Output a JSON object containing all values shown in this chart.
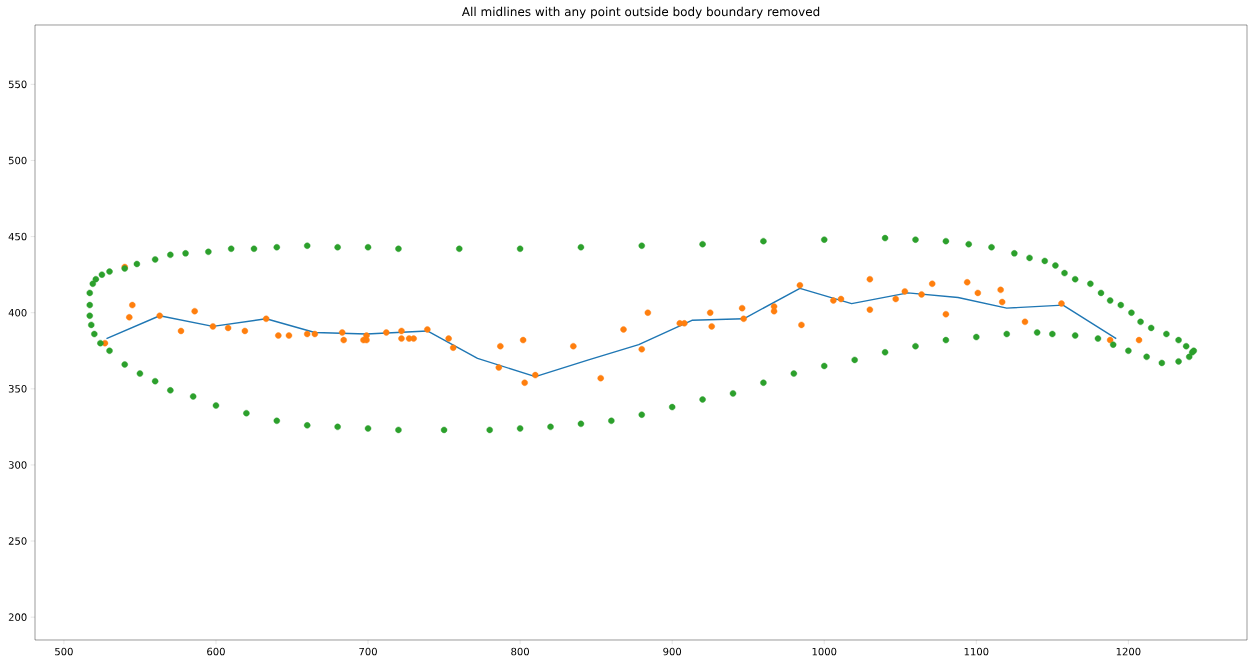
{
  "chart_data": {
    "type": "scatter",
    "title": "All midlines with any point outside body boundary removed",
    "xlim": [
      481,
      1278
    ],
    "ylim": [
      185,
      589
    ],
    "xticks": [
      500,
      600,
      700,
      800,
      900,
      1000,
      1100,
      1200
    ],
    "yticks": [
      200,
      250,
      300,
      350,
      400,
      450,
      500,
      550
    ],
    "marker": "circle",
    "line_style": "solid",
    "series": [
      {
        "type": "line",
        "marker": "none",
        "color": "#1f77b4",
        "x": [
          528,
          563,
          598,
          633,
          665,
          699,
          739,
          772,
          810,
          845,
          878,
          913,
          947,
          984,
          1018,
          1055,
          1088,
          1120,
          1157,
          1192
        ],
        "values": [
          383,
          398,
          391,
          396,
          387,
          386,
          388,
          370,
          358,
          369,
          379,
          395,
          396,
          416,
          406,
          413,
          410,
          403,
          405,
          383
        ]
      },
      {
        "color": "#ff7f0e",
        "x": [
          527,
          540,
          543,
          545,
          563,
          577,
          586,
          598,
          608,
          619,
          633,
          641,
          648,
          660,
          665,
          683,
          684,
          697,
          699,
          699,
          712,
          722,
          722,
          727,
          730,
          739,
          753,
          756,
          786,
          787,
          802,
          803,
          810,
          835,
          853,
          868,
          880,
          884,
          905,
          908,
          925,
          926,
          946,
          947,
          967,
          967,
          984,
          985,
          1006,
          1011,
          1030,
          1030,
          1047,
          1053,
          1064,
          1071,
          1080,
          1094,
          1101,
          1116,
          1117,
          1132,
          1156,
          1188,
          1207
        ],
        "values": [
          380,
          430,
          397,
          405,
          398,
          388,
          401,
          391,
          390,
          388,
          396,
          385,
          385,
          386,
          386,
          387,
          382,
          382,
          385,
          382,
          387,
          388,
          383,
          383,
          383,
          389,
          383,
          377,
          364,
          378,
          382,
          354,
          359,
          378,
          357,
          389,
          376,
          400,
          393,
          393,
          400,
          391,
          403,
          396,
          404,
          401,
          418,
          392,
          408,
          409,
          422,
          402,
          409,
          414,
          412,
          419,
          399,
          420,
          413,
          415,
          407,
          394,
          406,
          382,
          382
        ]
      },
      {
        "color": "#2ca02c",
        "x": [
          517,
          517,
          519,
          521,
          525,
          530,
          540,
          548,
          560,
          570,
          580,
          595,
          610,
          625,
          640,
          660,
          680,
          700,
          720,
          760,
          800,
          840,
          880,
          920,
          960,
          1000,
          1040,
          1060,
          1080,
          1095,
          1110,
          1125,
          1135,
          1145,
          1152,
          1158,
          1165,
          1175,
          1182,
          1188,
          1195,
          1202,
          1208,
          1215,
          1225,
          1233,
          1238,
          1242,
          1243,
          1240,
          1233,
          1222,
          1212,
          1200,
          1190,
          1180,
          1165,
          1150,
          1140,
          1120,
          1100,
          1080,
          1060,
          1040,
          1020,
          1000,
          980,
          960,
          940,
          920,
          900,
          880,
          860,
          840,
          820,
          800,
          780,
          750,
          720,
          700,
          680,
          660,
          640,
          620,
          600,
          585,
          570,
          560,
          550,
          540,
          530,
          524,
          520,
          518,
          517
        ],
        "values": [
          405,
          413,
          419,
          422,
          425,
          427,
          429,
          432,
          435,
          438,
          439,
          440,
          442,
          442,
          443,
          444,
          443,
          443,
          442,
          442,
          442,
          443,
          444,
          445,
          447,
          448,
          449,
          448,
          447,
          445,
          443,
          439,
          436,
          434,
          431,
          426,
          422,
          419,
          413,
          408,
          405,
          400,
          394,
          390,
          386,
          382,
          378,
          374,
          375,
          371,
          368,
          367,
          371,
          375,
          379,
          383,
          385,
          386,
          387,
          386,
          384,
          382,
          378,
          374,
          369,
          365,
          360,
          354,
          347,
          343,
          338,
          333,
          329,
          327,
          325,
          324,
          323,
          323,
          323,
          324,
          325,
          326,
          329,
          334,
          339,
          345,
          349,
          355,
          360,
          366,
          375,
          380,
          386,
          392,
          398
        ]
      }
    ]
  }
}
